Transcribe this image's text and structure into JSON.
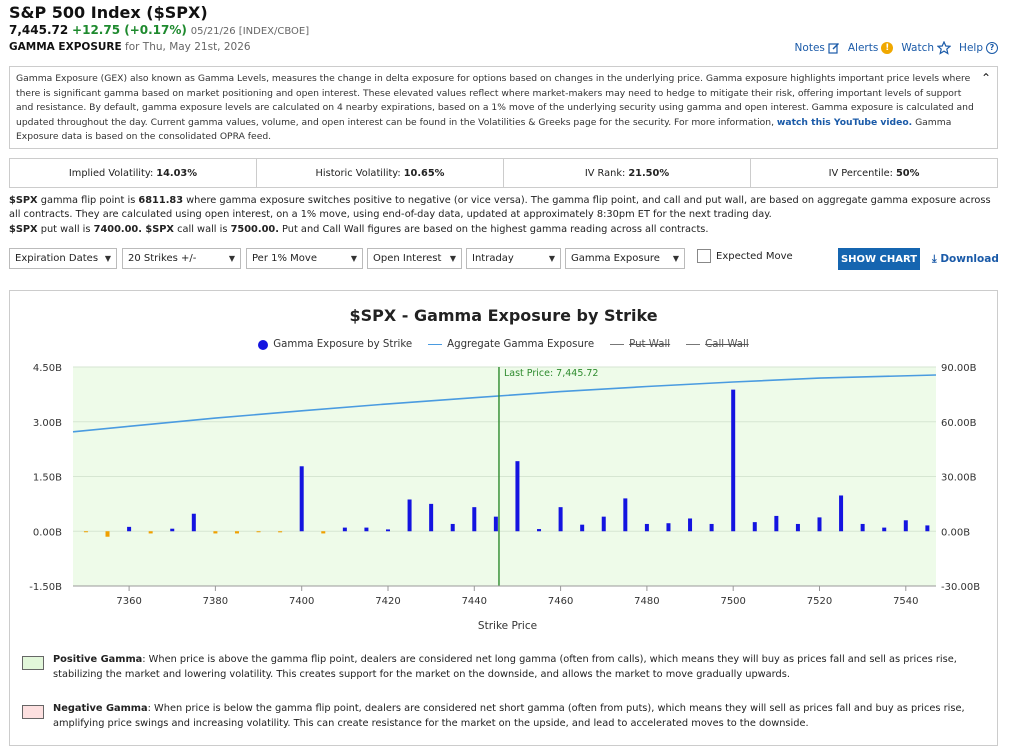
{
  "header": {
    "title": "S&P 500 Index ($SPX)",
    "last": "7,445.72",
    "change": "+12.75 (+0.17%)",
    "meta": "05/21/26 [INDEX/CBOE]",
    "section": "GAMMA EXPOSURE",
    "section_date": "for Thu, May 21st, 2026",
    "links": {
      "notes": "Notes",
      "alerts": "Alerts",
      "watch": "Watch",
      "help": "Help"
    }
  },
  "description": {
    "text1": "Gamma Exposure (GEX) also known as Gamma Levels, measures the change in delta exposure for options based on changes in the underlying price. Gamma exposure highlights important price levels where there is significant gamma based on market positioning and open interest. These elevated values reflect where market-makers may need to hedge to mitigate their risk, offering important levels of support and resistance. By default, gamma exposure levels are calculated on 4 nearby expirations, based on a 1% move of the underlying security using gamma and open interest. Gamma exposure is calculated and updated throughout the day. Current gamma values, volume, and open interest can be found in the Volatilities & Greeks page for the security. For more information,",
    "link": "watch this YouTube video.",
    "text2": "Gamma Exposure data is based on the consolidated OPRA feed."
  },
  "stats": [
    {
      "label": "Implied Volatility:",
      "value": "14.03%"
    },
    {
      "label": "Historic Volatility:",
      "value": "10.65%"
    },
    {
      "label": "IV Rank:",
      "value": "21.50%"
    },
    {
      "label": "IV Percentile:",
      "value": "50%"
    }
  ],
  "flip": {
    "p1a": "$SPX",
    "p1b": " gamma flip point is ",
    "p1c": "6811.83",
    "p1d": " where gamma exposure switches positive to negative (or vice versa). The gamma flip point, and call and put wall, are based on aggregate gamma exposure across all contracts. They are calculated using open interest, on a 1% move, using end-of-day data, updated at approximately 8:30pm ET for the next trading day.",
    "p2a": "$SPX",
    "p2b": " put wall is ",
    "p2c": "7400.00.",
    "p2d": " $SPX",
    "p2e": " call wall is ",
    "p2f": "7500.00.",
    "p2g": " Put and Call Wall figures are based on the highest gamma reading across all contracts."
  },
  "controls": {
    "expiration": "Expiration Dates",
    "strikes": "20 Strikes +/-",
    "move": "Per 1% Move",
    "interest": "Open Interest",
    "period": "Intraday",
    "metric": "Gamma Exposure",
    "expected_move": "Expected Move",
    "show_chart": "SHOW CHART",
    "download": "Download"
  },
  "chart_data": {
    "type": "bar",
    "title": "$SPX - Gamma Exposure by Strike",
    "xlabel": "Strike Price",
    "legend": [
      "Gamma Exposure by Strike",
      "Aggregate Gamma Exposure",
      "Put Wall",
      "Call Wall"
    ],
    "legend_placement": "top",
    "x_ticks": [
      7360,
      7380,
      7400,
      7420,
      7440,
      7460,
      7480,
      7500,
      7520,
      7540
    ],
    "y_left_ticks": [
      "4.50B",
      "3.00B",
      "1.50B",
      "0.00B",
      "-1.50B"
    ],
    "y_right_ticks": [
      "90.00B",
      "60.00B",
      "30.00B",
      "0.00B",
      "-30.00B"
    ],
    "ylim_left": [
      -1.5,
      4.5
    ],
    "ylim_right": [
      -30,
      90
    ],
    "xlim": [
      7347,
      7547
    ],
    "last_price_label": "Last Price: 7,445.72",
    "last_price": 7445.72,
    "colors": {
      "positive": "#1414e0",
      "negative": "#f0a000",
      "aggregate": "#4a9be0",
      "last_price": "#2e8b2e",
      "background": "#eefbe9"
    },
    "bars": [
      {
        "strike": 7350,
        "value": -0.02
      },
      {
        "strike": 7355,
        "value": -0.15
      },
      {
        "strike": 7360,
        "value": 0.12
      },
      {
        "strike": 7365,
        "value": -0.06
      },
      {
        "strike": 7370,
        "value": 0.07
      },
      {
        "strike": 7375,
        "value": 0.48
      },
      {
        "strike": 7380,
        "value": -0.06
      },
      {
        "strike": 7385,
        "value": -0.06
      },
      {
        "strike": 7390,
        "value": -0.02
      },
      {
        "strike": 7395,
        "value": -0.03
      },
      {
        "strike": 7400,
        "value": 1.78
      },
      {
        "strike": 7405,
        "value": -0.06
      },
      {
        "strike": 7410,
        "value": 0.1
      },
      {
        "strike": 7415,
        "value": 0.1
      },
      {
        "strike": 7420,
        "value": 0.05
      },
      {
        "strike": 7425,
        "value": 0.87
      },
      {
        "strike": 7430,
        "value": 0.75
      },
      {
        "strike": 7435,
        "value": 0.2
      },
      {
        "strike": 7440,
        "value": 0.66
      },
      {
        "strike": 7445,
        "value": 0.4
      },
      {
        "strike": 7450,
        "value": 1.92
      },
      {
        "strike": 7455,
        "value": 0.06
      },
      {
        "strike": 7460,
        "value": 0.66
      },
      {
        "strike": 7465,
        "value": 0.18
      },
      {
        "strike": 7470,
        "value": 0.4
      },
      {
        "strike": 7475,
        "value": 0.9
      },
      {
        "strike": 7480,
        "value": 0.2
      },
      {
        "strike": 7485,
        "value": 0.22
      },
      {
        "strike": 7490,
        "value": 0.35
      },
      {
        "strike": 7495,
        "value": 0.2
      },
      {
        "strike": 7500,
        "value": 3.88
      },
      {
        "strike": 7505,
        "value": 0.25
      },
      {
        "strike": 7510,
        "value": 0.42
      },
      {
        "strike": 7515,
        "value": 0.2
      },
      {
        "strike": 7520,
        "value": 0.38
      },
      {
        "strike": 7525,
        "value": 0.98
      },
      {
        "strike": 7530,
        "value": 0.2
      },
      {
        "strike": 7535,
        "value": 0.1
      },
      {
        "strike": 7540,
        "value": 0.3
      },
      {
        "strike": 7545,
        "value": 0.16
      }
    ],
    "aggregate": [
      {
        "strike": 7347,
        "value": 54.5
      },
      {
        "strike": 7360,
        "value": 57.5
      },
      {
        "strike": 7380,
        "value": 62.0
      },
      {
        "strike": 7400,
        "value": 66.0
      },
      {
        "strike": 7420,
        "value": 69.8
      },
      {
        "strike": 7440,
        "value": 73.2
      },
      {
        "strike": 7460,
        "value": 76.5
      },
      {
        "strike": 7480,
        "value": 79.3
      },
      {
        "strike": 7500,
        "value": 81.8
      },
      {
        "strike": 7520,
        "value": 83.9
      },
      {
        "strike": 7547,
        "value": 85.6
      }
    ]
  },
  "notes": {
    "positive_title": "Positive Gamma",
    "positive_text": ": When price is above the gamma flip point, dealers are considered net long gamma (often from calls), which means they will buy as prices fall and sell as prices rise, stabilizing the market and lowering volatility. This creates support for the market on the downside, and allows the market to move gradually upwards.",
    "negative_title": "Negative Gamma",
    "negative_text": ": When price is below the gamma flip point, dealers are considered net short gamma (often from puts), which means they will sell as prices fall and buy as prices rise, amplifying price swings and increasing volatility. This can create resistance for the market on the upside, and lead to accelerated moves to the downside."
  }
}
